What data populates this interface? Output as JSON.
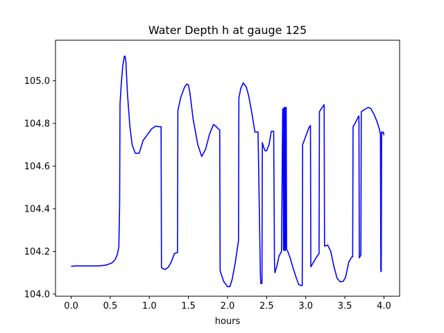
{
  "chart_data": {
    "type": "line",
    "title": "Water Depth h at gauge 125",
    "xlabel": "hours",
    "ylabel": "",
    "xlim": [
      -0.2,
      4.2
    ],
    "ylim": [
      103.99,
      105.19
    ],
    "xticks": [
      0.0,
      0.5,
      1.0,
      1.5,
      2.0,
      2.5,
      3.0,
      3.5,
      4.0
    ],
    "xtick_labels": [
      "0.0",
      "0.5",
      "1.0",
      "1.5",
      "2.0",
      "2.5",
      "3.0",
      "3.5",
      "4.0"
    ],
    "yticks": [
      104.0,
      104.2,
      104.4,
      104.6,
      104.8,
      105.0
    ],
    "ytick_labels": [
      "104.0",
      "104.2",
      "104.4",
      "104.6",
      "104.8",
      "105.0"
    ],
    "grid": false,
    "legend": "none",
    "series": [
      {
        "color": "#0000ff",
        "x": [
          0.0,
          0.05,
          0.2,
          0.35,
          0.45,
          0.52,
          0.56,
          0.59,
          0.61,
          0.62,
          0.625,
          0.64,
          0.66,
          0.68,
          0.69,
          0.7,
          0.72,
          0.75,
          0.78,
          0.82,
          0.87,
          0.92,
          0.97,
          1.03,
          1.08,
          1.12,
          1.15,
          1.155,
          1.17,
          1.2,
          1.24,
          1.28,
          1.32,
          1.36,
          1.365,
          1.4,
          1.45,
          1.48,
          1.5,
          1.52,
          1.56,
          1.62,
          1.67,
          1.72,
          1.77,
          1.82,
          1.85,
          1.88,
          1.9,
          1.905,
          1.95,
          2.0,
          2.03,
          2.06,
          2.1,
          2.14,
          2.145,
          2.17,
          2.2,
          2.24,
          2.27,
          2.31,
          2.35,
          2.39,
          2.42,
          2.425,
          2.44,
          2.445,
          2.46,
          2.48,
          2.5,
          2.53,
          2.56,
          2.59,
          2.6,
          2.605,
          2.63,
          2.66,
          2.69,
          2.705,
          2.71,
          2.715,
          2.72,
          2.725,
          2.73,
          2.735,
          2.74,
          2.745,
          2.75,
          2.755,
          2.77,
          2.8,
          2.84,
          2.88,
          2.91,
          2.94,
          2.955,
          2.96,
          3.0,
          3.04,
          3.06,
          3.065,
          3.1,
          3.14,
          3.17,
          3.175,
          3.2,
          3.22,
          3.235,
          3.24,
          3.28,
          3.32,
          3.36,
          3.4,
          3.44,
          3.48,
          3.51,
          3.55,
          3.59,
          3.6,
          3.605,
          3.63,
          3.67,
          3.68,
          3.685,
          3.7,
          3.705,
          3.71,
          3.75,
          3.8,
          3.83,
          3.87,
          3.91,
          3.94,
          3.955,
          3.96,
          3.965,
          3.97,
          3.975,
          3.99,
          4.0
        ],
        "y": [
          104.13,
          104.132,
          104.132,
          104.132,
          104.136,
          104.146,
          104.16,
          104.185,
          104.22,
          104.42,
          104.89,
          104.98,
          105.07,
          105.115,
          105.115,
          105.09,
          104.94,
          104.79,
          104.7,
          104.66,
          104.66,
          104.72,
          104.745,
          104.775,
          104.787,
          104.785,
          104.785,
          104.125,
          104.12,
          104.115,
          104.125,
          104.15,
          104.19,
          104.195,
          104.86,
          104.92,
          104.97,
          104.985,
          104.98,
          104.94,
          104.82,
          104.7,
          104.645,
          104.68,
          104.75,
          104.795,
          104.787,
          104.775,
          104.77,
          104.11,
          104.06,
          104.035,
          104.035,
          104.07,
          104.15,
          104.25,
          104.92,
          104.965,
          104.99,
          104.97,
          104.93,
          104.85,
          104.76,
          104.76,
          104.09,
          104.05,
          104.05,
          104.71,
          104.69,
          104.672,
          104.672,
          104.7,
          104.763,
          104.763,
          104.15,
          104.1,
          104.13,
          104.18,
          104.2,
          104.865,
          104.87,
          104.21,
          104.205,
          104.875,
          104.875,
          104.205,
          104.205,
          104.875,
          104.875,
          104.21,
          104.2,
          104.17,
          104.12,
          104.075,
          104.045,
          104.04,
          104.04,
          104.7,
          104.74,
          104.78,
          104.79,
          104.128,
          104.15,
          104.175,
          104.19,
          104.855,
          104.87,
          104.88,
          104.888,
          104.225,
          104.23,
          104.2,
          104.13,
          104.075,
          104.058,
          104.06,
          104.08,
          104.15,
          104.175,
          104.175,
          104.785,
          104.8,
          104.83,
          104.835,
          104.17,
          104.18,
          104.185,
          104.855,
          104.865,
          104.875,
          104.87,
          104.845,
          104.81,
          104.775,
          104.75,
          104.11,
          104.105,
          104.76,
          104.755,
          104.76,
          104.745
        ]
      }
    ]
  }
}
